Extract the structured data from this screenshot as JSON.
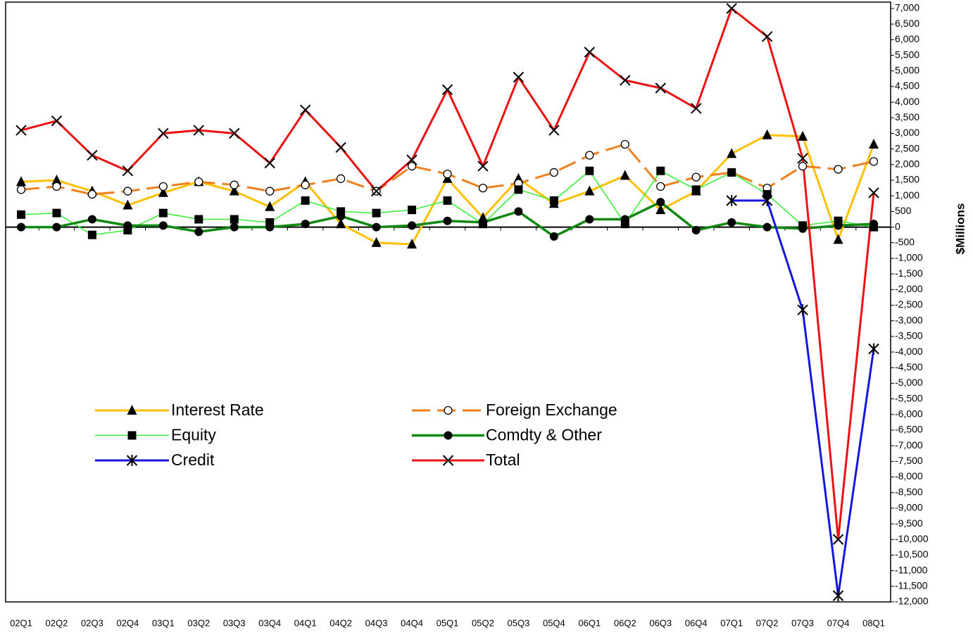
{
  "chart_data": {
    "type": "line",
    "y_label": "$Millions",
    "categories": [
      "02Q1",
      "02Q2",
      "02Q3",
      "02Q4",
      "03Q1",
      "03Q2",
      "03Q3",
      "03Q4",
      "04Q1",
      "04Q2",
      "04Q3",
      "04Q4",
      "05Q1",
      "05Q2",
      "05Q3",
      "05Q4",
      "06Q1",
      "06Q2",
      "06Q3",
      "06Q4",
      "07Q1",
      "07Q2",
      "07Q3",
      "07Q4",
      "08Q1"
    ],
    "ylim": [
      -12000,
      7000
    ],
    "yticks": [
      {
        "value": -12000,
        "label": "-12,000"
      },
      {
        "value": -11500,
        "label": "-11,500"
      },
      {
        "value": -11000,
        "label": "-11,000"
      },
      {
        "value": -10500,
        "label": "-10,500"
      },
      {
        "value": -10000,
        "label": "-10,000"
      },
      {
        "value": -9500,
        "label": "-9,500"
      },
      {
        "value": -9000,
        "label": "-9,000"
      },
      {
        "value": -8500,
        "label": "-8,500"
      },
      {
        "value": -8000,
        "label": "-8,000"
      },
      {
        "value": -7500,
        "label": "-7,500"
      },
      {
        "value": -7000,
        "label": "-7,000"
      },
      {
        "value": -6500,
        "label": "-6,500"
      },
      {
        "value": -6000,
        "label": "-6,000"
      },
      {
        "value": -5500,
        "label": "-5,500"
      },
      {
        "value": -5000,
        "label": "-5,000"
      },
      {
        "value": -4500,
        "label": "-4,500"
      },
      {
        "value": -4000,
        "label": "-4,000"
      },
      {
        "value": -3500,
        "label": "-3,500"
      },
      {
        "value": -3000,
        "label": "-3,000"
      },
      {
        "value": -2500,
        "label": "-2,500"
      },
      {
        "value": -2000,
        "label": "-2,000"
      },
      {
        "value": -1500,
        "label": "-1,500"
      },
      {
        "value": -1000,
        "label": "-1,000"
      },
      -500,
      0,
      500,
      {
        "value": 1000,
        "label": "1,000"
      },
      {
        "value": 1500,
        "label": "1,500"
      },
      {
        "value": 2000,
        "label": "2,000"
      },
      {
        "value": 2500,
        "label": "2,500"
      },
      {
        "value": 3000,
        "label": "3,000"
      },
      {
        "value": 3500,
        "label": "3,500"
      },
      {
        "value": 4000,
        "label": "4,000"
      },
      {
        "value": 4500,
        "label": "4,500"
      },
      {
        "value": 5000,
        "label": "5,000"
      },
      {
        "value": 5500,
        "label": "5,500"
      },
      {
        "value": 6000,
        "label": "6,000"
      },
      {
        "value": 6500,
        "label": "6,500"
      },
      {
        "value": 7000,
        "label": "7,000"
      }
    ],
    "series": [
      {
        "name": "Interest Rate",
        "color": "#ffc000",
        "marker": "triangle",
        "line_width": 3,
        "values": [
          1450,
          1500,
          1150,
          700,
          1100,
          1450,
          1150,
          650,
          1450,
          100,
          -500,
          -550,
          1550,
          300,
          1550,
          750,
          1150,
          1650,
          550,
          1150,
          2350,
          2950,
          2900,
          -400,
          2650
        ]
      },
      {
        "name": "Foreign Exchange",
        "color": "#f07f1e",
        "marker": "open-circle",
        "line_width": 3,
        "dashed": true,
        "values": [
          1200,
          1300,
          1050,
          1150,
          1300,
          1450,
          1350,
          1150,
          1350,
          1550,
          1150,
          1950,
          1700,
          1250,
          1400,
          1750,
          2300,
          2650,
          1300,
          1600,
          1750,
          1250,
          1950,
          1850,
          2100
        ]
      },
      {
        "name": "Equity",
        "color": "#33ee33",
        "marker": "square",
        "line_width": 1.5,
        "values": [
          400,
          450,
          -250,
          -100,
          450,
          250,
          250,
          150,
          850,
          500,
          450,
          550,
          850,
          100,
          1200,
          850,
          1800,
          100,
          1800,
          1200,
          1750,
          1050,
          50,
          200,
          0
        ]
      },
      {
        "name": "Comdty & Other",
        "color": "#118811",
        "marker": "circle",
        "line_width": 3.5,
        "values": [
          0,
          0,
          250,
          50,
          50,
          -150,
          0,
          0,
          100,
          350,
          0,
          50,
          200,
          150,
          500,
          -300,
          250,
          250,
          800,
          -100,
          150,
          0,
          -50,
          50,
          100
        ]
      },
      {
        "name": "Credit",
        "color": "#1515e0",
        "marker": "star",
        "line_width": 3,
        "values": [
          null,
          null,
          null,
          null,
          null,
          null,
          null,
          null,
          null,
          null,
          null,
          null,
          null,
          null,
          null,
          null,
          null,
          null,
          null,
          null,
          850,
          850,
          -2650,
          -11800,
          -3900
        ]
      },
      {
        "name": "Total",
        "color": "#ee1111",
        "marker": "x",
        "line_width": 3,
        "values": [
          3100,
          3400,
          2300,
          1800,
          3000,
          3100,
          3000,
          2050,
          3750,
          2550,
          1150,
          2150,
          4400,
          1950,
          4800,
          3100,
          5600,
          4700,
          4450,
          3800,
          7000,
          6100,
          2200,
          -10000,
          1100
        ]
      }
    ]
  }
}
